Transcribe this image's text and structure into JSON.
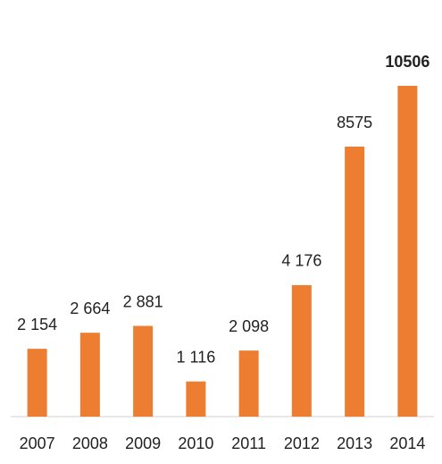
{
  "chart_data": {
    "type": "bar",
    "categories": [
      "2007",
      "2008",
      "2009",
      "2010",
      "2011",
      "2012",
      "2013",
      "2014"
    ],
    "values": [
      2154,
      2664,
      2881,
      1116,
      2098,
      4176,
      8575,
      10506
    ],
    "value_labels": [
      "2 154",
      "2 664",
      "2 881",
      "1 116",
      "2 098",
      "4 176",
      "8575",
      "10506"
    ],
    "color": "#ed7d31"
  }
}
